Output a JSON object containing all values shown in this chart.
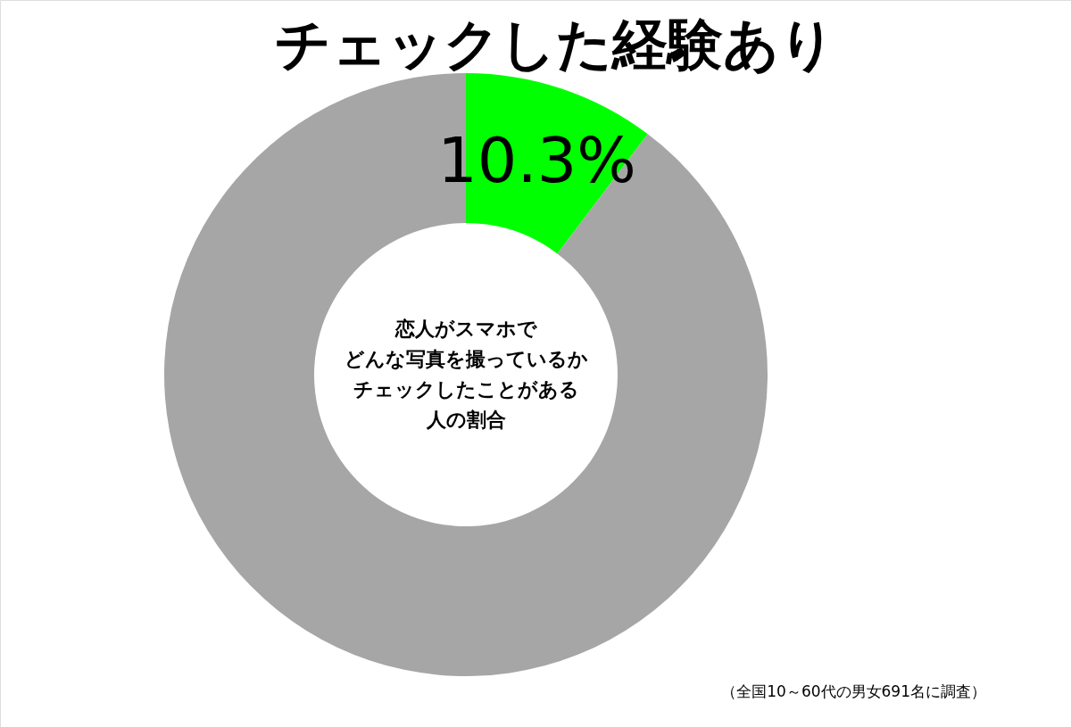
{
  "chart_data": {
    "type": "donut",
    "title": "チェックした経験あり",
    "categories": [
      null,
      null
    ],
    "values": [
      10.3,
      89.7
    ],
    "colors": [
      "#00ff00",
      "#a6a6a6"
    ],
    "value_labels": [
      "10.3%",
      null
    ],
    "annotations": [
      "恋人がスマホで",
      "どんな写真を撮っているか",
      "チェックしたことがある",
      "人の割合",
      "（全国10～60代の男女691名に調査）"
    ]
  }
}
